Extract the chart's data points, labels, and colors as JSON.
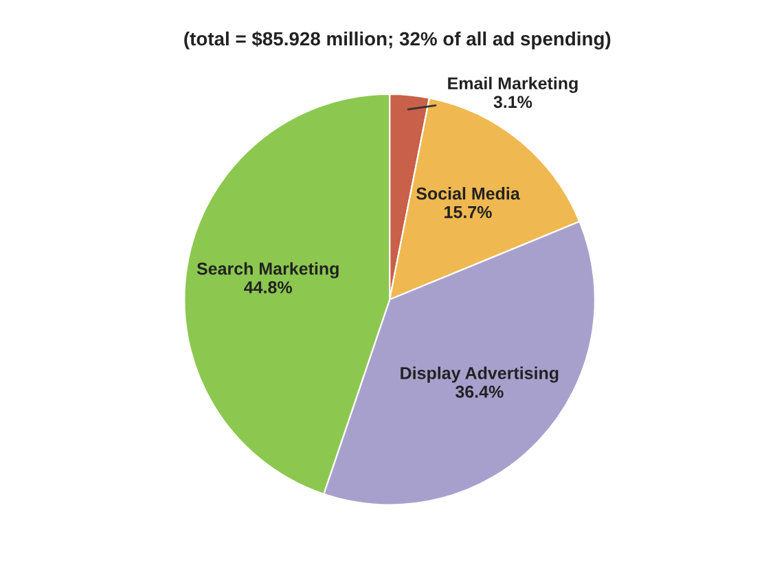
{
  "chart_data": {
    "type": "pie",
    "title": "(total = $85.928 million; 32% of all ad spending)",
    "categories": [
      "Email Marketing",
      "Social Media",
      "Display Advertising",
      "Search Marketing"
    ],
    "values": [
      3.1,
      15.7,
      36.4,
      44.8
    ],
    "value_labels": [
      "3.1%",
      "15.7%",
      "36.4%",
      "44.8%"
    ],
    "colors": [
      "#c8604a",
      "#f0b850",
      "#a8a0cc",
      "#8cc850"
    ],
    "legend": false
  }
}
